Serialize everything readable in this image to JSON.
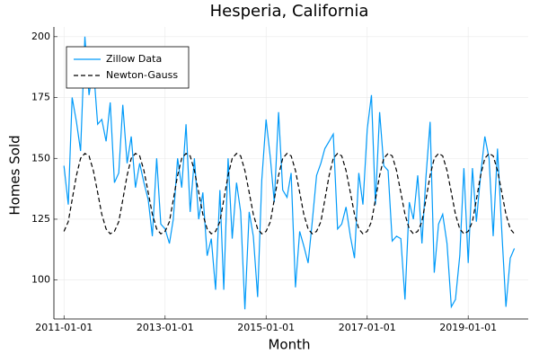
{
  "chart_data": {
    "type": "line",
    "title": "Hesperia, California",
    "x_label": "Month",
    "y_label": "Homes Sold",
    "x": [
      "2011-01-01",
      "2011-02-01",
      "2011-03-01",
      "2011-04-01",
      "2011-05-01",
      "2011-06-01",
      "2011-07-01",
      "2011-08-01",
      "2011-09-01",
      "2011-10-01",
      "2011-11-01",
      "2011-12-01",
      "2012-01-01",
      "2012-02-01",
      "2012-03-01",
      "2012-04-01",
      "2012-05-01",
      "2012-06-01",
      "2012-07-01",
      "2012-08-01",
      "2012-09-01",
      "2012-10-01",
      "2012-11-01",
      "2012-12-01",
      "2013-01-01",
      "2013-02-01",
      "2013-03-01",
      "2013-04-01",
      "2013-05-01",
      "2013-06-01",
      "2013-07-01",
      "2013-08-01",
      "2013-09-01",
      "2013-10-01",
      "2013-11-01",
      "2013-12-01",
      "2014-01-01",
      "2014-02-01",
      "2014-03-01",
      "2014-04-01",
      "2014-05-01",
      "2014-06-01",
      "2014-07-01",
      "2014-08-01",
      "2014-09-01",
      "2014-10-01",
      "2014-11-01",
      "2014-12-01",
      "2015-01-01",
      "2015-02-01",
      "2015-03-01",
      "2015-04-01",
      "2015-05-01",
      "2015-06-01",
      "2015-07-01",
      "2015-08-01",
      "2015-09-01",
      "2015-10-01",
      "2015-11-01",
      "2015-12-01",
      "2016-01-01",
      "2016-02-01",
      "2016-03-01",
      "2016-04-01",
      "2016-05-01",
      "2016-06-01",
      "2016-07-01",
      "2016-08-01",
      "2016-09-01",
      "2016-10-01",
      "2016-11-01",
      "2016-12-01",
      "2017-01-01",
      "2017-02-01",
      "2017-03-01",
      "2017-04-01",
      "2017-05-01",
      "2017-06-01",
      "2017-07-01",
      "2017-08-01",
      "2017-09-01",
      "2017-10-01",
      "2017-11-01",
      "2017-12-01",
      "2018-01-01",
      "2018-02-01",
      "2018-03-01",
      "2018-04-01",
      "2018-05-01",
      "2018-06-01",
      "2018-07-01",
      "2018-08-01",
      "2018-09-01",
      "2018-10-01",
      "2018-11-01",
      "2018-12-01",
      "2019-01-01",
      "2019-02-01",
      "2019-03-01",
      "2019-04-01",
      "2019-05-01",
      "2019-06-01",
      "2019-07-01",
      "2019-08-01",
      "2019-09-01",
      "2019-10-01",
      "2019-11-01",
      "2019-12-01"
    ],
    "series": [
      {
        "name": "Zillow Data",
        "color": "#009af9",
        "dash": false,
        "values": [
          147,
          131,
          175,
          165,
          153,
          200,
          176,
          188,
          164,
          166,
          157,
          173,
          140,
          144,
          172,
          148,
          159,
          138,
          148,
          140,
          133,
          118,
          150,
          123,
          121,
          115,
          125,
          150,
          138,
          164,
          128,
          150,
          125,
          136,
          110,
          117,
          96,
          137,
          96,
          150,
          117,
          140,
          128,
          88,
          128,
          118,
          93,
          141,
          166,
          150,
          132,
          169,
          137,
          134,
          144,
          97,
          120,
          114,
          107,
          124,
          143,
          148,
          154,
          157,
          160,
          121,
          123,
          130,
          118,
          109,
          144,
          131,
          162,
          176,
          131,
          169,
          147,
          145,
          116,
          118,
          117,
          92,
          132,
          125,
          143,
          115,
          142,
          165,
          103,
          123,
          127,
          115,
          89,
          92,
          110,
          146,
          107,
          146,
          124,
          143,
          159,
          150,
          118,
          154,
          120,
          89,
          109,
          113
        ]
      },
      {
        "name": "Newton-Gauss",
        "color": "#000000",
        "dash": true,
        "values": [
          120,
          124,
          133,
          143,
          150,
          152,
          151,
          145,
          136,
          127,
          121,
          119,
          120,
          124,
          133,
          143,
          150,
          152,
          151,
          145,
          136,
          127,
          121,
          119,
          120,
          124,
          133,
          143,
          150,
          152,
          151,
          145,
          136,
          127,
          121,
          119,
          120,
          124,
          133,
          143,
          150,
          152,
          151,
          145,
          136,
          127,
          121,
          119,
          120,
          124,
          133,
          143,
          150,
          152,
          151,
          145,
          136,
          127,
          121,
          119,
          120,
          124,
          133,
          143,
          150,
          152,
          151,
          145,
          136,
          127,
          121,
          119,
          120,
          124,
          133,
          143,
          150,
          152,
          151,
          145,
          136,
          127,
          121,
          119,
          120,
          124,
          133,
          143,
          150,
          152,
          151,
          145,
          136,
          127,
          121,
          119,
          120,
          124,
          133,
          143,
          150,
          152,
          151,
          145,
          136,
          127,
          121,
          119
        ]
      }
    ],
    "xlim": [
      "2010-10-20",
      "2020-03-10"
    ],
    "xticks": [
      "2011-01-01",
      "2013-01-01",
      "2015-01-01",
      "2017-01-01",
      "2019-01-01"
    ],
    "ylim": [
      84,
      204
    ],
    "yticks": [
      100,
      125,
      150,
      175,
      200
    ],
    "grid": true,
    "legend": "top-left"
  }
}
